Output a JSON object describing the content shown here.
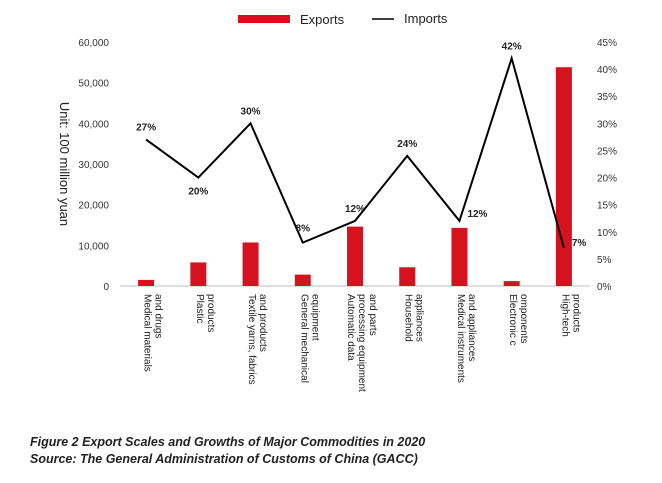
{
  "chart_data": {
    "type": "bar",
    "categories": [
      [
        "Medical materials",
        "and drugs"
      ],
      [
        "Plastic",
        "products"
      ],
      [
        "Textile yarns, fabrics",
        "and products"
      ],
      [
        "General mechanical",
        "equipment"
      ],
      [
        "Automatic data",
        "processing equipment",
        "and parts"
      ],
      [
        "Household",
        "appliances"
      ],
      [
        "Medical instruments",
        "and appliances"
      ],
      [
        "Electronic c",
        "omponents"
      ],
      [
        "High-tech",
        "products"
      ]
    ],
    "series": [
      {
        "name": "Exports",
        "type": "bar",
        "axis": "left",
        "color": "#d7121f",
        "values": [
          1500,
          5800,
          10700,
          2800,
          14600,
          4600,
          14300,
          1200,
          53800
        ]
      },
      {
        "name": "Imports",
        "type": "line",
        "axis": "right",
        "color": "#000000",
        "values": [
          27,
          20,
          30,
          8,
          12,
          24,
          12,
          42,
          7
        ],
        "labels": [
          "27%",
          "20%",
          "30%",
          "8%",
          "12%",
          "24%",
          "12%",
          "42%",
          "7%"
        ]
      }
    ],
    "ylabel": "Unit: 100 million yuan",
    "ylim": [
      0,
      60000
    ],
    "yticks": [
      "0",
      "10,000",
      "20,000",
      "30,000",
      "40,000",
      "50,000",
      "60,000"
    ],
    "y2lim": [
      0,
      45
    ],
    "y2ticks": [
      "0%",
      "5%",
      "10%",
      "15%",
      "20%",
      "25%",
      "30%",
      "35%",
      "40%",
      "45%"
    ],
    "legend": "top-center",
    "grid": false
  },
  "caption": {
    "line1": "Figure 2 Export Scales and Growths of Major Commodities in 2020",
    "line2": "Source: The General Administration of Customs of China (GACC)"
  }
}
